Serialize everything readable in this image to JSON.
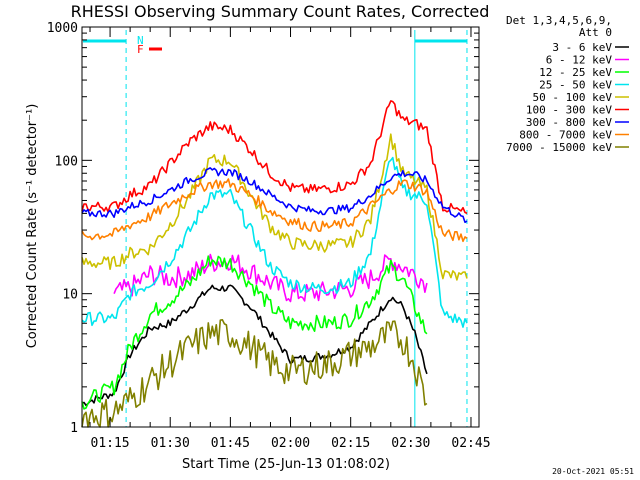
{
  "chart_data": {
    "type": "line",
    "title": "RHESSI Observing Summary Count Rates, Corrected",
    "xlabel": "Start Time (25-Jun-13 01:08:02)",
    "ylabel": "Corrected Count Rate (s⁻¹ detector⁻¹)",
    "yscale": "log",
    "ylim": [
      1,
      1000
    ],
    "xlim": [
      "01:08",
      "02:47"
    ],
    "x_ticks": [
      "01:15",
      "01:30",
      "01:45",
      "02:00",
      "02:15",
      "02:30",
      "02:45"
    ],
    "y_ticks": [
      "1",
      "10",
      "100",
      "1000"
    ],
    "legend_header": [
      "Det 1,3,4,5,6,9,",
      "Att 0"
    ],
    "legend_position": "right",
    "grid": false,
    "timestamp": "20-Oct-2021 05:51",
    "flags": [
      {
        "label": "N",
        "color": "#00e5ee"
      },
      {
        "label": "F",
        "color": "#ff0000"
      }
    ],
    "night_markers": [
      {
        "start": "01:08",
        "end": "01:19"
      },
      {
        "start": "02:31",
        "end": "02:44"
      }
    ],
    "series": [
      {
        "name": "3 - 6 keV",
        "color": "#000000",
        "x": [
          "01:08",
          "01:16",
          "01:20",
          "01:25",
          "01:30",
          "01:35",
          "01:40",
          "01:45",
          "01:50",
          "01:55",
          "02:00",
          "02:05",
          "02:10",
          "02:15",
          "02:20",
          "02:25",
          "02:28",
          "02:31",
          "02:34"
        ],
        "y": [
          1.5,
          1.8,
          3.5,
          5.5,
          6,
          8,
          11,
          11,
          8,
          5,
          3.2,
          3.3,
          3.5,
          4,
          6,
          9.5,
          8,
          5,
          2.5
        ]
      },
      {
        "name": "6 - 12 keV",
        "color": "#ff00ff",
        "x": [
          "01:16",
          "01:20",
          "01:25",
          "01:30",
          "01:35",
          "01:40",
          "01:45",
          "01:50",
          "01:55",
          "02:00",
          "02:05",
          "02:10",
          "02:15",
          "02:20",
          "02:25",
          "02:28",
          "02:31",
          "02:34"
        ],
        "y": [
          10,
          11,
          14,
          13,
          14,
          17,
          18,
          15,
          12,
          10,
          10,
          10.5,
          11,
          13,
          18,
          16,
          14,
          12
        ]
      },
      {
        "name": "12 - 25 keV",
        "color": "#00ff00",
        "x": [
          "01:08",
          "01:16",
          "01:20",
          "01:25",
          "01:30",
          "01:35",
          "01:40",
          "01:45",
          "01:50",
          "01:55",
          "02:00",
          "02:05",
          "02:10",
          "02:15",
          "02:20",
          "02:25",
          "02:28",
          "02:31",
          "02:34"
        ],
        "y": [
          1.5,
          2,
          4,
          7,
          9,
          12,
          18,
          17,
          12,
          8,
          6,
          6,
          6,
          6.5,
          9,
          16,
          13,
          8,
          5
        ]
      },
      {
        "name": "25 - 50 keV",
        "color": "#00e5ee",
        "x": [
          "01:08",
          "01:16",
          "01:20",
          "01:25",
          "01:30",
          "01:35",
          "01:40",
          "01:45",
          "01:50",
          "01:55",
          "02:00",
          "02:05",
          "02:10",
          "02:15",
          "02:20",
          "02:25",
          "02:28",
          "02:31",
          "02:34",
          "02:38",
          "02:44"
        ],
        "y": [
          6.5,
          6.5,
          10,
          12,
          18,
          30,
          55,
          55,
          30,
          16,
          12,
          11,
          11,
          12,
          20,
          110,
          60,
          55,
          50,
          7,
          6
        ]
      },
      {
        "name": "50 - 100 keV",
        "color": "#ccc000",
        "x": [
          "01:08",
          "01:16",
          "01:20",
          "01:25",
          "01:30",
          "01:35",
          "01:40",
          "01:45",
          "01:50",
          "01:55",
          "02:00",
          "02:05",
          "02:10",
          "02:15",
          "02:20",
          "02:25",
          "02:28",
          "02:31",
          "02:34",
          "02:38",
          "02:44"
        ],
        "y": [
          17,
          17,
          20,
          22,
          33,
          55,
          100,
          100,
          55,
          32,
          24,
          23,
          23,
          24,
          36,
          150,
          80,
          70,
          60,
          14,
          13
        ]
      },
      {
        "name": "100 - 300 keV",
        "color": "#ff0000",
        "x": [
          "01:08",
          "01:16",
          "01:20",
          "01:25",
          "01:30",
          "01:35",
          "01:40",
          "01:45",
          "01:50",
          "01:55",
          "02:00",
          "02:05",
          "02:10",
          "02:15",
          "02:20",
          "02:25",
          "02:28",
          "02:31",
          "02:34",
          "02:38",
          "02:44"
        ],
        "y": [
          45,
          45,
          55,
          65,
          95,
          140,
          180,
          170,
          120,
          80,
          62,
          60,
          62,
          66,
          95,
          280,
          200,
          190,
          170,
          45,
          40
        ]
      },
      {
        "name": "300 - 800 keV",
        "color": "#0000ff",
        "x": [
          "01:08",
          "01:16",
          "01:20",
          "01:25",
          "01:30",
          "01:35",
          "01:40",
          "01:45",
          "01:50",
          "01:55",
          "02:00",
          "02:05",
          "02:10",
          "02:15",
          "02:20",
          "02:25",
          "02:28",
          "02:31",
          "02:34",
          "02:38",
          "02:44"
        ],
        "y": [
          40,
          40,
          45,
          50,
          60,
          72,
          82,
          82,
          70,
          55,
          45,
          42,
          42,
          44,
          55,
          75,
          80,
          78,
          70,
          45,
          35
        ]
      },
      {
        "name": "800 - 7000 keV",
        "color": "#ff8000",
        "x": [
          "01:08",
          "01:16",
          "01:20",
          "01:25",
          "01:30",
          "01:35",
          "01:40",
          "01:45",
          "01:50",
          "01:55",
          "02:00",
          "02:05",
          "02:10",
          "02:15",
          "02:20",
          "02:25",
          "02:28",
          "02:31",
          "02:34",
          "02:38",
          "02:44"
        ],
        "y": [
          27,
          28,
          33,
          38,
          47,
          58,
          67,
          67,
          55,
          42,
          35,
          32,
          32,
          34,
          45,
          60,
          68,
          64,
          58,
          28,
          26
        ]
      },
      {
        "name": "7000 - 15000 keV",
        "color": "#808000",
        "x": [
          "01:08",
          "01:16",
          "01:20",
          "01:25",
          "01:30",
          "01:35",
          "01:40",
          "01:45",
          "01:50",
          "01:55",
          "02:00",
          "02:05",
          "02:10",
          "02:15",
          "02:20",
          "02:25",
          "02:28",
          "02:31",
          "02:34"
        ],
        "y": [
          1.2,
          1.3,
          1.6,
          2.2,
          3,
          4,
          5,
          5,
          4,
          3,
          2.6,
          2.8,
          3,
          3.5,
          4,
          5,
          4.5,
          3,
          1.5
        ]
      }
    ]
  }
}
